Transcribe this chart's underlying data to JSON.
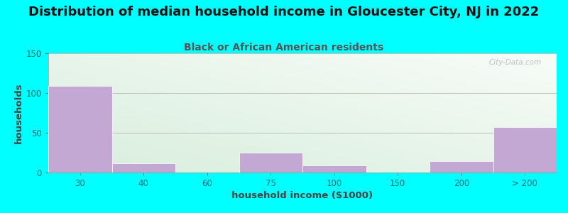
{
  "title": "Distribution of median household income in Gloucester City, NJ in 2022",
  "subtitle": "Black or African American residents",
  "xlabel": "household income ($1000)",
  "ylabel": "households",
  "background_outer": "#00FFFF",
  "bar_color": "#C4A8D4",
  "bar_edge_color": "#C4A8D4",
  "categories": [
    "30",
    "40",
    "60",
    "75",
    "100",
    "150",
    "200",
    "> 200"
  ],
  "values": [
    109,
    12,
    0,
    25,
    9,
    0,
    14,
    57
  ],
  "ylim": [
    0,
    150
  ],
  "yticks": [
    0,
    50,
    100,
    150
  ],
  "title_fontsize": 13,
  "subtitle_fontsize": 10,
  "axis_label_fontsize": 9.5,
  "tick_fontsize": 8.5,
  "title_color": "#111111",
  "subtitle_color": "#555555",
  "axis_label_color": "#444444",
  "tick_color": "#007070",
  "watermark_text": "City-Data.com",
  "watermark_color": "#B0B8B8",
  "plot_bg_color_bottom_left": "#d8eedd",
  "plot_bg_color_top_right": "#f5f8f5"
}
